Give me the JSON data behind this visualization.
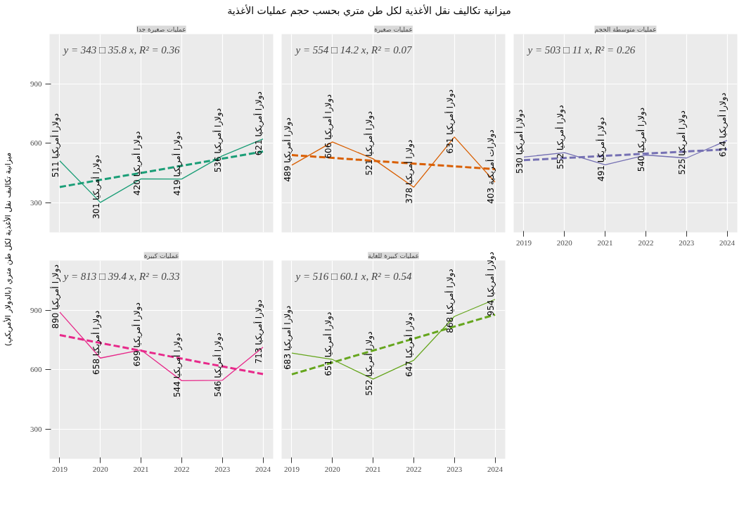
{
  "chart_data": [
    {
      "type": "line",
      "title": "عمليات صغيرة جدا",
      "subtitle": "ميزانية تكاليف نقل الأغذية لكل طن متري بحسب حجم عمليات الأغذية",
      "ylabel": "ميزانية تكاليف نقل الأغذية لكل طن متري (بالدولار الأمريكي)",
      "x": [
        2019,
        2020,
        2021,
        2022,
        2023,
        2024
      ],
      "xlim": [
        2018.75,
        2024.25
      ],
      "xticks": [
        2019,
        2020,
        2021,
        2022,
        2023,
        2024
      ],
      "ylim": [
        150,
        1150
      ],
      "yticks": [
        300,
        600,
        900
      ],
      "grid": true,
      "tick_labels": "y",
      "annotations": [
        "y = 343 □ 35.8 x, R² = 0.36"
      ],
      "series": [
        {
          "color": "#1b9e77",
          "values": [
            511,
            301,
            420,
            419,
            536,
            621
          ],
          "value_labels": [
            "511 دولارا أمريكيا",
            "301 دولارا أمريكيا",
            "420 دولارا أمريكيا",
            "419 دولارا أمريكيا",
            "536 دولارا أمريكيا",
            "621 دولارا أمريكيا"
          ]
        },
        {
          "color": "#1b9e77",
          "line_style": "dashed",
          "values": [
            379,
            415,
            450,
            486,
            522,
            558
          ]
        }
      ]
    },
    {
      "type": "line",
      "title": "عمليات صغيرة",
      "x": [
        2019,
        2020,
        2021,
        2022,
        2023,
        2024
      ],
      "xlim": [
        2018.75,
        2024.25
      ],
      "xticks": [
        2019,
        2020,
        2021,
        2022,
        2023,
        2024
      ],
      "ylim": [
        150,
        1150
      ],
      "yticks": [
        300,
        600,
        900
      ],
      "grid": true,
      "tick_labels": false,
      "annotations": [
        "y = 554 □ 14.2 x, R² = 0.07"
      ],
      "series": [
        {
          "color": "#d95f02",
          "values": [
            489,
            606,
            521,
            378,
            631,
            403
          ],
          "value_labels": [
            "489 دولارا أمريكيا",
            "606 دولارا أمريكيا",
            "521 دولارا أمريكيا",
            "378 دولارا أمريكيا",
            "631 دولارا أمريكيا",
            "403 دولارات أمريكية"
          ]
        },
        {
          "color": "#d95f02",
          "line_style": "dashed",
          "values": [
            540,
            526,
            511,
            497,
            483,
            469
          ]
        }
      ]
    },
    {
      "type": "line",
      "title": "عمليات متوسطة الحجم",
      "x": [
        2019,
        2020,
        2021,
        2022,
        2023,
        2024
      ],
      "xlim": [
        2018.75,
        2024.25
      ],
      "xticks": [
        2019,
        2020,
        2021,
        2022,
        2023,
        2024
      ],
      "ylim": [
        150,
        1150
      ],
      "yticks": [
        300,
        600,
        900
      ],
      "grid": true,
      "tick_labels": "x",
      "annotations": [
        "y = 503 □ 11 x, R² = 0.26"
      ],
      "series": [
        {
          "color": "#7570b3",
          "values": [
            530,
            552,
            491,
            540,
            525,
            614
          ],
          "value_labels": [
            "530 دولارا أمريكيا",
            "552 دولارا أمريكيا",
            "491 دولارا أمريكيا",
            "540 دولارا أمريكيا",
            "525 دولارا أمريكيا",
            "614 دولارا أمريكيا"
          ]
        },
        {
          "color": "#7570b3",
          "line_style": "dashed",
          "values": [
            514,
            525,
            536,
            547,
            558,
            569
          ]
        }
      ]
    },
    {
      "type": "line",
      "title": "عمليات كبيرة",
      "x": [
        2019,
        2020,
        2021,
        2022,
        2023,
        2024
      ],
      "xlim": [
        2018.75,
        2024.25
      ],
      "xticks": [
        2019,
        2020,
        2021,
        2022,
        2023,
        2024
      ],
      "ylim": [
        150,
        1150
      ],
      "yticks": [
        300,
        600,
        900
      ],
      "grid": true,
      "annotations": [
        "y = 813 □ 39.4 x, R² = 0.33"
      ],
      "series": [
        {
          "color": "#e7298a",
          "values": [
            890,
            658,
            699,
            544,
            546,
            713
          ],
          "value_labels": [
            "890 دولارا أمريكيا",
            "658 دولارا أمريكيا",
            "699 دولارا أمريكيا",
            "544 دولارا أمريكيا",
            "546 دولارا أمريكيا",
            "713 دولارا أمريكيا"
          ]
        },
        {
          "color": "#e7298a",
          "line_style": "dashed",
          "values": [
            774,
            734,
            695,
            655,
            616,
            577
          ]
        }
      ]
    },
    {
      "type": "line",
      "title": "عمليات كبيرة للغاية",
      "x": [
        2019,
        2020,
        2021,
        2022,
        2023,
        2024
      ],
      "xlim": [
        2018.75,
        2024.25
      ],
      "xticks": [
        2019,
        2020,
        2021,
        2022,
        2023,
        2024
      ],
      "ylim": [
        150,
        1150
      ],
      "yticks": [
        300,
        600,
        900
      ],
      "grid": true,
      "tick_labels": "x",
      "annotations": [
        "y = 516 □ 60.1 x, R² = 0.54"
      ],
      "series": [
        {
          "color": "#66a61e",
          "values": [
            683,
            651,
            552,
            647,
            868,
            954
          ],
          "value_labels": [
            "683 دولارا أمريكيا",
            "651 دولارا أمريكيا",
            "552 دولارا أمريكيا",
            "647 دولارا أمريكيا",
            "868 دولارا أمريكيا",
            "954 دولارا أمريكيا"
          ]
        },
        {
          "color": "#66a61e",
          "line_style": "dashed",
          "values": [
            576,
            636,
            696,
            756,
            817,
            877
          ]
        }
      ]
    }
  ]
}
